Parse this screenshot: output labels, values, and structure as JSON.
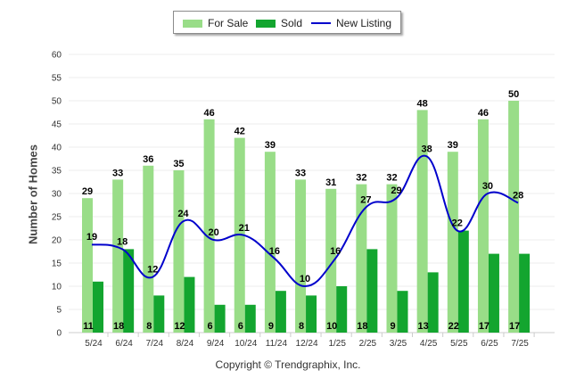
{
  "chart_data": {
    "type": "bar",
    "categories": [
      "5/24",
      "6/24",
      "7/24",
      "8/24",
      "9/24",
      "10/24",
      "11/24",
      "12/24",
      "1/25",
      "2/25",
      "3/25",
      "4/25",
      "5/25",
      "6/25",
      "7/25"
    ],
    "series": [
      {
        "name": "For Sale",
        "type": "bar",
        "color": "#99dd88",
        "values": [
          29,
          33,
          36,
          35,
          46,
          42,
          39,
          33,
          31,
          32,
          32,
          48,
          39,
          46,
          50
        ]
      },
      {
        "name": "Sold",
        "type": "bar",
        "color": "#13a52f",
        "values": [
          11,
          18,
          8,
          12,
          6,
          6,
          9,
          8,
          10,
          18,
          9,
          13,
          22,
          17,
          17
        ]
      },
      {
        "name": "New Listing",
        "type": "line",
        "color": "#0000cc",
        "values": [
          19,
          18,
          12,
          24,
          20,
          21,
          16,
          10,
          16,
          27,
          29,
          38,
          22,
          30,
          28
        ]
      }
    ],
    "ylabel": "Number of Homes",
    "xlabel": "",
    "ylim": [
      0,
      60
    ],
    "yticks": [
      0,
      5,
      10,
      15,
      20,
      25,
      30,
      35,
      40,
      45,
      50,
      55,
      60
    ],
    "legend": "top-center",
    "grid": true
  },
  "footer": {
    "copyright": "Copyright © Trendgraphix, Inc."
  }
}
